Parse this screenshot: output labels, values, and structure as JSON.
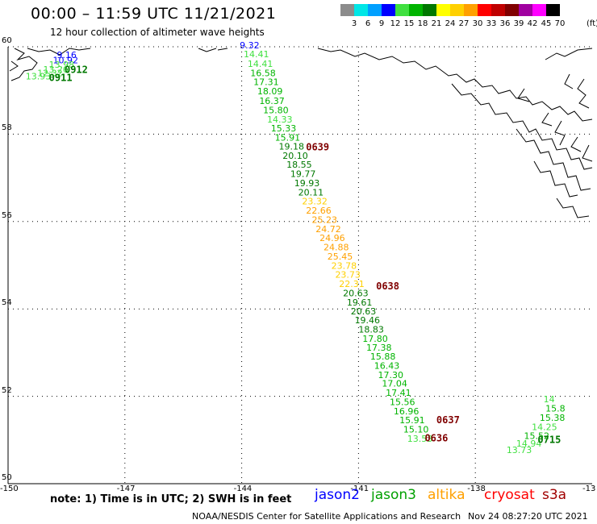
{
  "header": {
    "title": "00:00 – 11:59 UTC 11/21/2021",
    "subtitle": "12 hour collection of altimeter wave heights"
  },
  "color_scale": {
    "unit": "(ft)",
    "bins": [
      {
        "label": "3",
        "color": "#8c8c8c"
      },
      {
        "label": "6",
        "color": "#00e6e6"
      },
      {
        "label": "9",
        "color": "#00a0ff"
      },
      {
        "label": "12",
        "color": "#0000ff"
      },
      {
        "label": "15",
        "color": "#40e040"
      },
      {
        "label": "18",
        "color": "#00b400"
      },
      {
        "label": "21",
        "color": "#007800"
      },
      {
        "label": "24",
        "color": "#ffff00"
      },
      {
        "label": "27",
        "color": "#ffd000"
      },
      {
        "label": "30",
        "color": "#ffa000"
      },
      {
        "label": "33",
        "color": "#ff0000"
      },
      {
        "label": "36",
        "color": "#c00000"
      },
      {
        "label": "39",
        "color": "#800000"
      },
      {
        "label": "42",
        "color": "#a000a0"
      },
      {
        "label": "45",
        "color": "#ff00ff"
      },
      {
        "label": "70",
        "color": "#000000"
      }
    ]
  },
  "axes": {
    "lat_labels": [
      "60",
      "58",
      "56",
      "54",
      "52",
      "50"
    ],
    "lon_labels": [
      "-150",
      "-147",
      "-144",
      "-141",
      "-138",
      "-13"
    ]
  },
  "track_colors": {
    "low": "#40e040",
    "mid": "#00b400",
    "high": "#007800",
    "yellow": "#ffd000",
    "orange": "#ffa000",
    "blue": "#0000ff",
    "cyan": "#00a0ff",
    "time": "#800000"
  },
  "tracks": [
    {
      "id": "track-0911",
      "points": [
        {
          "v": "9.16",
          "c": "blue",
          "lon": -148.75,
          "lat": 59.74
        },
        {
          "v": "10.92",
          "c": "blue",
          "lon": -148.85,
          "lat": 59.62
        },
        {
          "v": "13.98",
          "c": "low",
          "lon": -148.95,
          "lat": 59.52
        },
        {
          "v": "13.26",
          "c": "low",
          "lon": -149.1,
          "lat": 59.41
        },
        {
          "v": "12.32",
          "c": "low",
          "lon": -149.25,
          "lat": 59.33
        },
        {
          "v": "13.93",
          "c": "low",
          "lon": -149.55,
          "lat": 59.25
        }
      ]
    },
    {
      "id": "track-0639",
      "points": [
        {
          "v": "9.32",
          "c": "blue",
          "lon": -144.05,
          "lat": 59.96
        },
        {
          "v": "14.41",
          "c": "low",
          "lon": -143.95,
          "lat": 59.76
        },
        {
          "v": "14.41",
          "c": "low",
          "lon": -143.85,
          "lat": 59.54
        },
        {
          "v": "16.58",
          "c": "mid",
          "lon": -143.78,
          "lat": 59.33
        },
        {
          "v": "17.31",
          "c": "mid",
          "lon": -143.7,
          "lat": 59.12
        },
        {
          "v": "18.09",
          "c": "mid",
          "lon": -143.6,
          "lat": 58.91
        },
        {
          "v": "16.37",
          "c": "mid",
          "lon": -143.55,
          "lat": 58.69
        },
        {
          "v": "15.80",
          "c": "mid",
          "lon": -143.45,
          "lat": 58.48
        },
        {
          "v": "14.33",
          "c": "low",
          "lon": -143.35,
          "lat": 58.27
        },
        {
          "v": "15.33",
          "c": "mid",
          "lon": -143.25,
          "lat": 58.06
        },
        {
          "v": "15.91",
          "c": "mid",
          "lon": -143.15,
          "lat": 57.85
        },
        {
          "v": "19.18",
          "c": "high",
          "lon": -143.05,
          "lat": 57.65
        },
        {
          "v": "20.10",
          "c": "high",
          "lon": -142.95,
          "lat": 57.44
        },
        {
          "v": "18.55",
          "c": "high",
          "lon": -142.85,
          "lat": 57.23
        },
        {
          "v": "19.77",
          "c": "high",
          "lon": -142.75,
          "lat": 57.02
        },
        {
          "v": "19.93",
          "c": "high",
          "lon": -142.65,
          "lat": 56.81
        },
        {
          "v": "20.11",
          "c": "high",
          "lon": -142.55,
          "lat": 56.6
        },
        {
          "v": "23.32",
          "c": "yellow",
          "lon": -142.45,
          "lat": 56.39
        },
        {
          "v": "22.66",
          "c": "orange",
          "lon": -142.35,
          "lat": 56.18
        },
        {
          "v": "25.23",
          "c": "orange",
          "lon": -142.2,
          "lat": 55.97
        },
        {
          "v": "24.72",
          "c": "orange",
          "lon": -142.1,
          "lat": 55.76
        },
        {
          "v": "24.96",
          "c": "orange",
          "lon": -142.0,
          "lat": 55.55
        },
        {
          "v": "24.88",
          "c": "orange",
          "lon": -141.9,
          "lat": 55.34
        },
        {
          "v": "25.45",
          "c": "orange",
          "lon": -141.8,
          "lat": 55.13
        },
        {
          "v": "23.78",
          "c": "yellow",
          "lon": -141.7,
          "lat": 54.92
        },
        {
          "v": "23.73",
          "c": "yellow",
          "lon": -141.6,
          "lat": 54.71
        },
        {
          "v": "22.31",
          "c": "yellow",
          "lon": -141.5,
          "lat": 54.5
        }
      ]
    },
    {
      "id": "track-0638",
      "points": [
        {
          "v": "20.63",
          "c": "high",
          "lon": -141.4,
          "lat": 54.29
        },
        {
          "v": "19.61",
          "c": "high",
          "lon": -141.3,
          "lat": 54.08
        },
        {
          "v": "20.63",
          "c": "high",
          "lon": -141.2,
          "lat": 53.87
        },
        {
          "v": "19.46",
          "c": "high",
          "lon": -141.1,
          "lat": 53.67
        },
        {
          "v": "18.83",
          "c": "high",
          "lon": -141.0,
          "lat": 53.46
        },
        {
          "v": "17.80",
          "c": "mid",
          "lon": -140.9,
          "lat": 53.25
        },
        {
          "v": "17.38",
          "c": "mid",
          "lon": -140.8,
          "lat": 53.04
        },
        {
          "v": "15.88",
          "c": "mid",
          "lon": -140.7,
          "lat": 52.84
        },
        {
          "v": "16.43",
          "c": "mid",
          "lon": -140.6,
          "lat": 52.63
        },
        {
          "v": "17.30",
          "c": "mid",
          "lon": -140.5,
          "lat": 52.42
        },
        {
          "v": "17.04",
          "c": "mid",
          "lon": -140.4,
          "lat": 52.22
        },
        {
          "v": "17.41",
          "c": "mid",
          "lon": -140.3,
          "lat": 52.01
        },
        {
          "v": "15.56",
          "c": "mid",
          "lon": -140.2,
          "lat": 51.8
        },
        {
          "v": "16.96",
          "c": "mid",
          "lon": -140.1,
          "lat": 51.59
        },
        {
          "v": "15.91",
          "c": "mid",
          "lon": -139.95,
          "lat": 51.38
        },
        {
          "v": "15.10",
          "c": "mid",
          "lon": -139.85,
          "lat": 51.17
        },
        {
          "v": "13.53",
          "c": "low",
          "lon": -139.75,
          "lat": 50.96
        }
      ]
    },
    {
      "id": "track-0715",
      "points": [
        {
          "v": "14",
          "c": "low",
          "lon": -136.25,
          "lat": 51.86
        },
        {
          "v": "15.8",
          "c": "mid",
          "lon": -136.2,
          "lat": 51.65
        },
        {
          "v": "15.38",
          "c": "mid",
          "lon": -136.35,
          "lat": 51.44
        },
        {
          "v": "14.25",
          "c": "low",
          "lon": -136.55,
          "lat": 51.23
        },
        {
          "v": "15.52",
          "c": "mid",
          "lon": -136.75,
          "lat": 51.02
        },
        {
          "v": "14.94",
          "c": "low",
          "lon": -136.95,
          "lat": 50.85
        },
        {
          "v": "13.73",
          "c": "low",
          "lon": -137.2,
          "lat": 50.7
        }
      ]
    }
  ],
  "time_labels": [
    {
      "text": "0912",
      "c": "high",
      "lon": -148.55,
      "lat": 59.4
    },
    {
      "text": "0911",
      "c": "high",
      "lon": -148.95,
      "lat": 59.22
    },
    {
      "text": "0639",
      "c": "time",
      "lon": -142.35,
      "lat": 57.63
    },
    {
      "text": "0638",
      "c": "time",
      "lon": -140.55,
      "lat": 54.45
    },
    {
      "text": "0637",
      "c": "time",
      "lon": -139.0,
      "lat": 51.38
    },
    {
      "text": "0636",
      "c": "time",
      "lon": -139.3,
      "lat": 50.97
    },
    {
      "text": "0715",
      "c": "high",
      "lon": -136.4,
      "lat": 50.93
    }
  ],
  "footer": {
    "note": "note: 1) Time is in UTC; 2) SWH is in feet",
    "satellites": [
      {
        "name": "jason2",
        "color": "#0000ff"
      },
      {
        "name": "jason3",
        "color": "#00a000"
      },
      {
        "name": "altika",
        "color": "#ffa000"
      },
      {
        "name": "cryosat",
        "color": "#ff0000"
      },
      {
        "name": "s3a",
        "color": "#a00000"
      }
    ],
    "credit": "NOAA/NESDIS Center for Satellite Applications and Research",
    "timestamp": "Nov 24 08:27:20 UTC 2021"
  }
}
